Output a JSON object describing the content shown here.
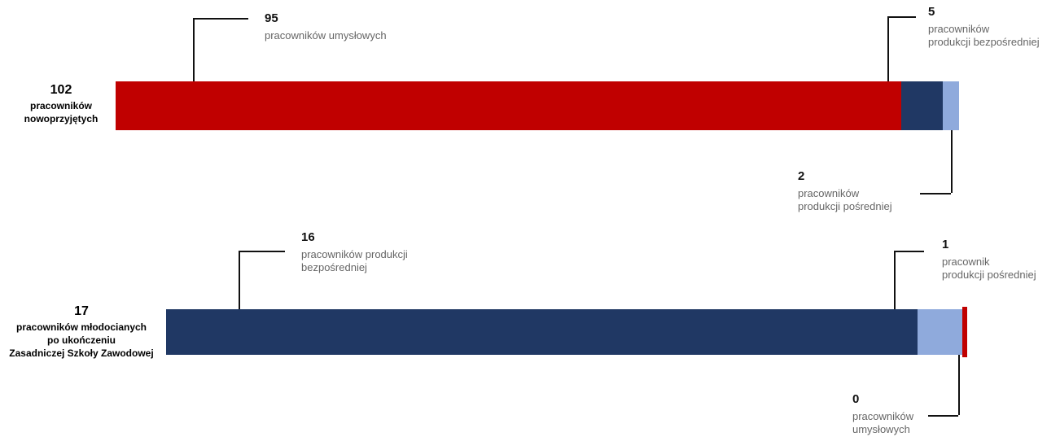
{
  "chart_data": [
    {
      "type": "stacked-bar",
      "total": 102,
      "label": "pracowników\nnowoprzyjętych",
      "series": [
        {
          "name": "pracowników umysłowych",
          "color": "#c00000",
          "values": [
            95
          ]
        },
        {
          "name": "pracowników\nprodukcji bezpośredniej",
          "color": "#203864",
          "values": [
            5
          ]
        },
        {
          "name": "pracowników\nprodukcji pośredniej",
          "color": "#8faadc",
          "values": [
            2
          ]
        }
      ]
    },
    {
      "type": "stacked-bar",
      "total": 17,
      "label": "pracowników młodocianych\npo ukończeniu\nZasadniczej Szkoły Zawodowej",
      "series": [
        {
          "name": "pracowników produkcji\nbezpośredniej",
          "color": "#203864",
          "values": [
            16
          ]
        },
        {
          "name": "pracownik\nprodukcji pośredniej",
          "color": "#8faadc",
          "values": [
            1
          ]
        },
        {
          "name": "pracowników\numysłowych",
          "color": "#c00000",
          "values": [
            0
          ]
        }
      ]
    }
  ]
}
